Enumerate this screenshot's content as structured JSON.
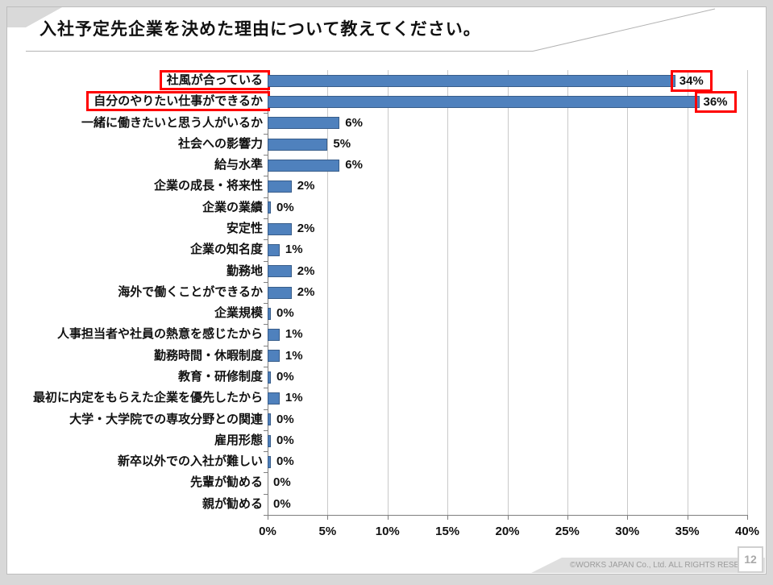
{
  "slide": {
    "title": "入社予定先企業を決めた理由について教えてください。",
    "page_number": "12",
    "copyright": "©WORKS JAPAN Co., Ltd. ALL RIGHTS RESERVED."
  },
  "chart_data": {
    "type": "bar",
    "orientation": "horizontal",
    "title": "",
    "xlabel": "",
    "ylabel": "",
    "xlim": [
      0,
      40
    ],
    "x_tick_labels": [
      "0%",
      "5%",
      "10%",
      "15%",
      "20%",
      "25%",
      "30%",
      "35%",
      "40%"
    ],
    "grid": true,
    "legend": false,
    "categories": [
      "社風が合っている",
      "自分のやりたい仕事ができるか",
      "一緒に働きたいと思う人がいるか",
      "社会への影響力",
      "給与水準",
      "企業の成長・将来性",
      "企業の業績",
      "安定性",
      "企業の知名度",
      "勤務地",
      "海外で働くことができるか",
      "企業規模",
      "人事担当者や社員の熱意を感じたから",
      "勤務時間・休暇制度",
      "教育・研修制度",
      "最初に内定をもらえた企業を優先したから",
      "大学・大学院での専攻分野との関連",
      "雇用形態",
      "新卒以外での入社が難しい",
      "先輩が勧める",
      "親が勧める"
    ],
    "values": [
      34,
      36,
      6,
      5,
      6,
      2,
      0,
      2,
      1,
      2,
      2,
      0,
      1,
      1,
      0,
      1,
      0,
      0,
      0,
      0,
      0
    ],
    "value_labels": [
      "34%",
      "36%",
      "6%",
      "5%",
      "6%",
      "2%",
      "0%",
      "2%",
      "1%",
      "2%",
      "2%",
      "0%",
      "1%",
      "1%",
      "0%",
      "1%",
      "0%",
      "0%",
      "0%",
      "0%",
      "0%"
    ],
    "trace_bars": [
      false,
      false,
      false,
      false,
      false,
      false,
      true,
      false,
      false,
      false,
      false,
      true,
      false,
      false,
      true,
      false,
      true,
      true,
      true,
      false,
      false
    ],
    "highlighted": [
      true,
      true,
      false,
      false,
      false,
      false,
      false,
      false,
      false,
      false,
      false,
      false,
      false,
      false,
      false,
      false,
      false,
      false,
      false,
      false,
      false
    ],
    "highlighted_categories": [
      "社風が合っている",
      "自分のやりたい仕事ができるか"
    ],
    "bar_color": "#4F81BD",
    "bar_border_color": "#385D8A",
    "highlight_box_color": "#FF0000"
  }
}
